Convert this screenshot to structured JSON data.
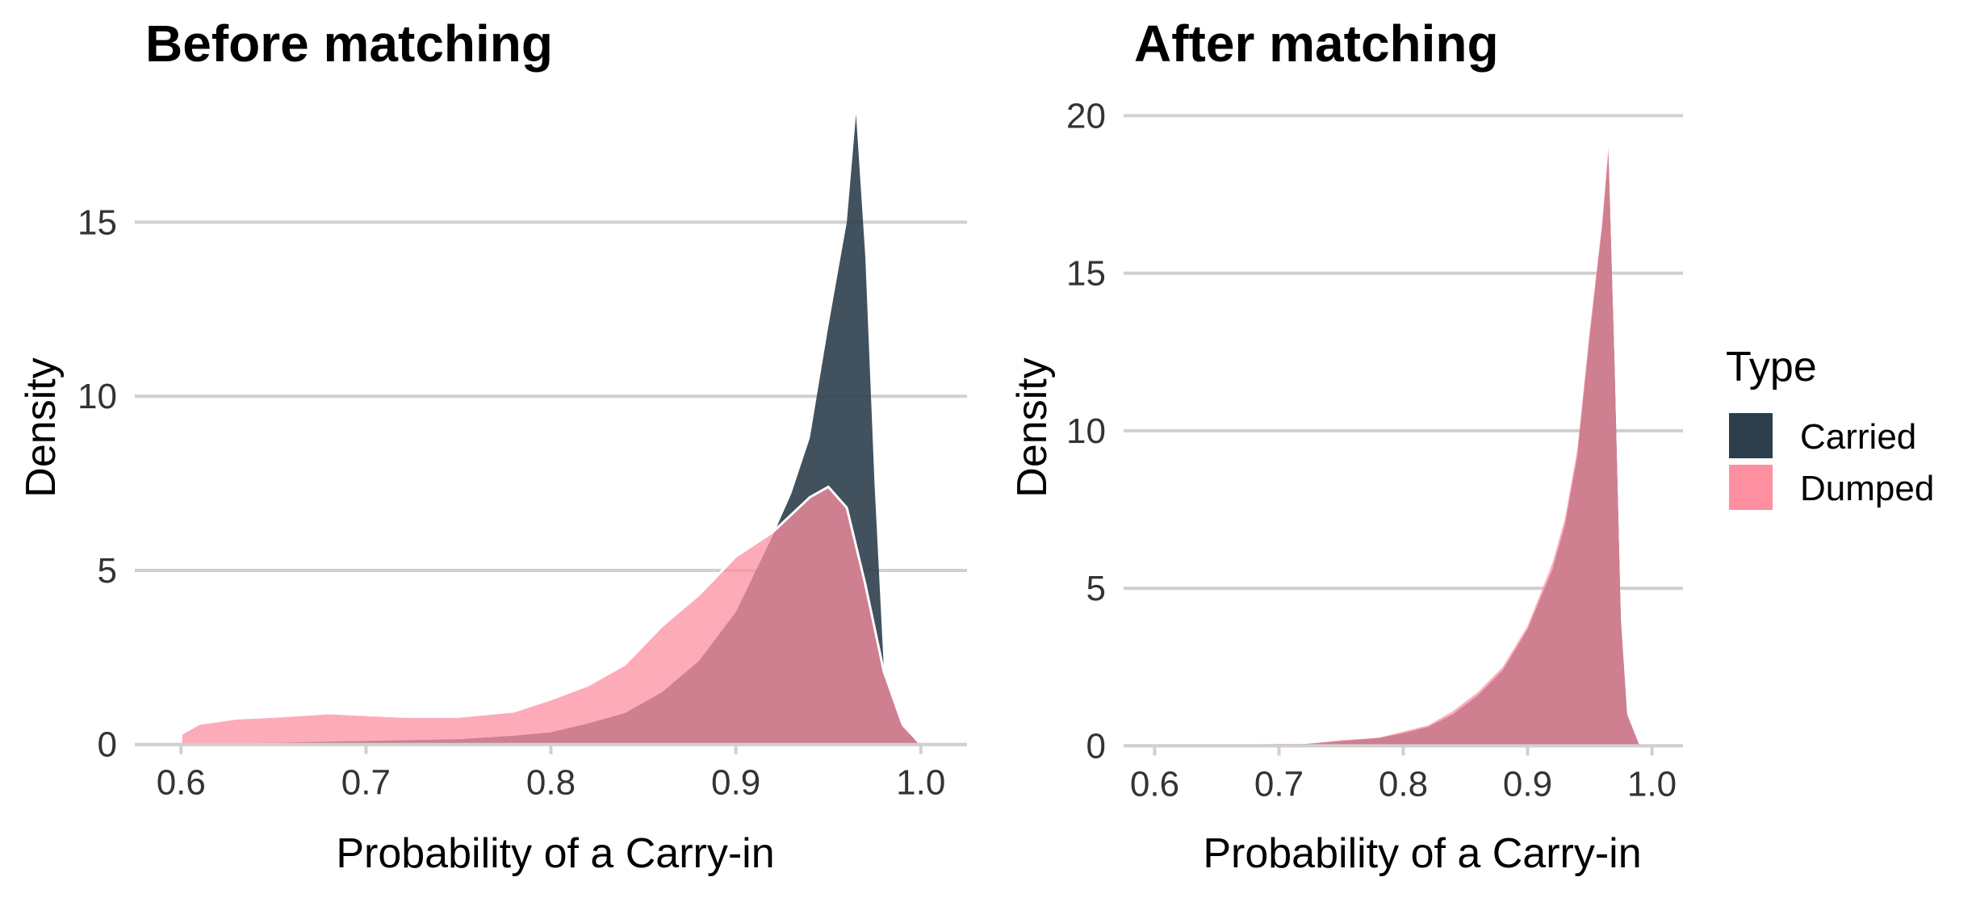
{
  "chart_data": [
    {
      "type": "area",
      "title": "Before matching",
      "xlabel": "Probability of a Carry-in",
      "ylabel": "Density",
      "xlim": [
        0.575,
        1.025
      ],
      "ylim": [
        -0.4,
        18.6
      ],
      "xticks": [
        "0.6",
        "0.7",
        "0.8",
        "0.9",
        "1.0"
      ],
      "yticks": [
        "0",
        "5",
        "10",
        "15"
      ],
      "grid": "horizontal",
      "series": [
        {
          "name": "Carried",
          "color": "#2c3e4c",
          "x": [
            0.6,
            0.65,
            0.7,
            0.75,
            0.78,
            0.8,
            0.82,
            0.84,
            0.86,
            0.88,
            0.9,
            0.92,
            0.93,
            0.94,
            0.95,
            0.955,
            0.96,
            0.965,
            0.97,
            0.975,
            0.98,
            0.985,
            0.99,
            1.0
          ],
          "y": [
            0.0,
            0.05,
            0.1,
            0.15,
            0.25,
            0.35,
            0.6,
            0.9,
            1.5,
            2.4,
            3.8,
            6.0,
            7.2,
            8.8,
            12.0,
            13.5,
            15.0,
            18.1,
            14.0,
            7.5,
            2.2,
            1.4,
            0.5,
            0.0
          ]
        },
        {
          "name": "Dumped",
          "color": "#fe8fa1",
          "x": [
            0.6,
            0.61,
            0.63,
            0.65,
            0.68,
            0.7,
            0.72,
            0.75,
            0.78,
            0.8,
            0.82,
            0.84,
            0.86,
            0.88,
            0.9,
            0.92,
            0.94,
            0.95,
            0.96,
            0.97,
            0.98,
            0.99,
            1.0
          ],
          "y": [
            0.3,
            0.6,
            0.75,
            0.8,
            0.9,
            0.85,
            0.8,
            0.8,
            0.95,
            1.3,
            1.7,
            2.3,
            3.4,
            4.3,
            5.4,
            6.1,
            7.1,
            7.4,
            6.8,
            4.6,
            2.1,
            0.6,
            0.0
          ]
        }
      ]
    },
    {
      "type": "area",
      "title": "After matching",
      "xlabel": "Probability of a Carry-in",
      "ylabel": "Density",
      "xlim": [
        0.575,
        1.025
      ],
      "ylim": [
        -0.4,
        20.6
      ],
      "xticks": [
        "0.6",
        "0.7",
        "0.8",
        "0.9",
        "1.0"
      ],
      "yticks": [
        "0",
        "5",
        "10",
        "15",
        "20"
      ],
      "grid": "horizontal",
      "series": [
        {
          "name": "Carried",
          "color": "#2c3e4c",
          "x": [
            0.6,
            0.65,
            0.7,
            0.72,
            0.75,
            0.78,
            0.8,
            0.82,
            0.84,
            0.86,
            0.88,
            0.9,
            0.92,
            0.93,
            0.94,
            0.95,
            0.96,
            0.965,
            0.97,
            0.975,
            0.98,
            0.99
          ],
          "y": [
            0.0,
            0.02,
            0.05,
            0.05,
            0.15,
            0.25,
            0.4,
            0.6,
            1.0,
            1.6,
            2.4,
            3.7,
            5.6,
            7.0,
            9.2,
            13.0,
            16.5,
            18.8,
            12.0,
            4.0,
            1.0,
            0.0
          ]
        },
        {
          "name": "Dumped",
          "color": "#fe8fa1",
          "x": [
            0.6,
            0.65,
            0.7,
            0.72,
            0.75,
            0.78,
            0.8,
            0.82,
            0.84,
            0.86,
            0.88,
            0.9,
            0.92,
            0.93,
            0.94,
            0.95,
            0.96,
            0.965,
            0.97,
            0.975,
            0.98,
            0.99
          ],
          "y": [
            0.0,
            0.03,
            0.06,
            0.05,
            0.18,
            0.25,
            0.45,
            0.65,
            1.1,
            1.7,
            2.5,
            3.8,
            5.8,
            7.2,
            9.4,
            13.2,
            16.6,
            19.0,
            12.0,
            4.0,
            1.0,
            0.0
          ]
        }
      ]
    }
  ],
  "legend": {
    "title": "Type",
    "items": [
      {
        "label": "Carried",
        "color": "#2c3e4c"
      },
      {
        "label": "Dumped",
        "color": "#fe8fa1"
      }
    ]
  }
}
